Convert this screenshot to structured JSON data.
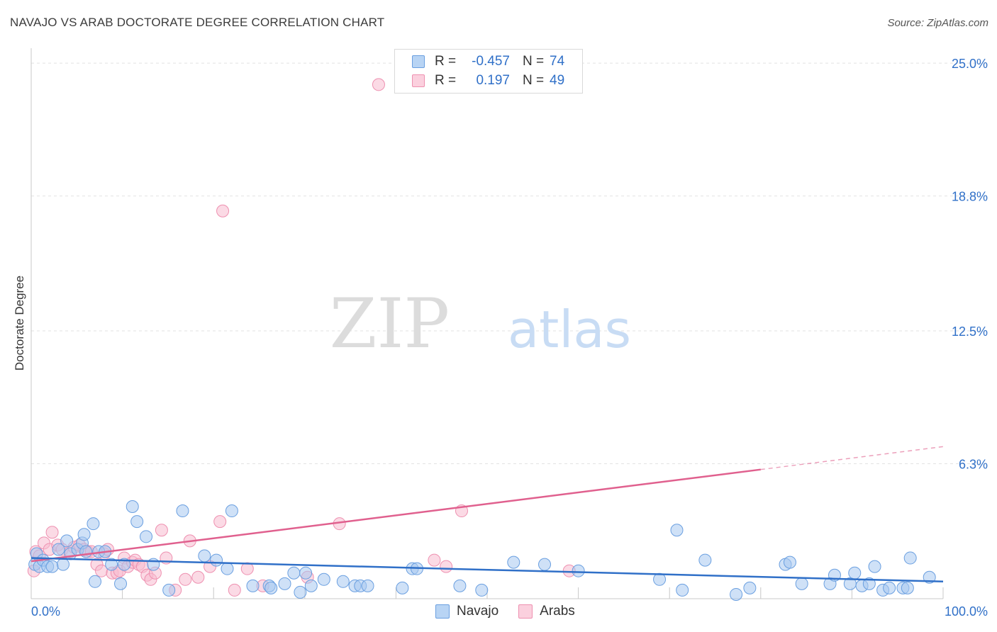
{
  "title": "NAVAJO VS ARAB DOCTORATE DEGREE CORRELATION CHART",
  "source": "Source: ZipAtlas.com",
  "watermark": {
    "zip": "ZIP",
    "atlas": "atlas"
  },
  "legend": {
    "navajo": {
      "r_label": "R =",
      "r_value": "-0.457",
      "n_label": "N =",
      "n_value": "74"
    },
    "arabs": {
      "r_label": "R =",
      "r_value": "0.197",
      "n_label": "N =",
      "n_value": "49"
    }
  },
  "bottom_legend": {
    "navajo": "Navajo",
    "arabs": "Arabs"
  },
  "colors": {
    "navajo_fill": "#a8c8f0",
    "navajo_stroke": "#6a9fe0",
    "navajo_line": "#3070c8",
    "arabs_fill": "#f8bcd0",
    "arabs_stroke": "#ee90b0",
    "arabs_line": "#e0608e",
    "tick_label": "#3070c8",
    "grid": "#e2e2e2"
  },
  "chart_data": {
    "type": "scatter",
    "title": "NAVAJO VS ARAB DOCTORATE DEGREE CORRELATION CHART",
    "xlabel": "",
    "ylabel": "Doctorate Degree",
    "xlim": [
      0,
      100
    ],
    "ylim": [
      0,
      25.5
    ],
    "x_tick_labels": [
      "0.0%",
      "100.0%"
    ],
    "y_ticks": [
      6.3,
      12.5,
      18.8,
      25.0
    ],
    "y_tick_labels": [
      "6.3%",
      "12.5%",
      "18.8%",
      "25.0%"
    ],
    "series": [
      {
        "name": "Navajo",
        "trend": {
          "x0": 0,
          "y0": 1.9,
          "x1": 100,
          "y1": 0.8,
          "solid_to": 100
        },
        "points": [
          [
            0.4,
            1.6
          ],
          [
            0.6,
            2.1
          ],
          [
            0.9,
            1.5
          ],
          [
            1.3,
            1.8
          ],
          [
            1.8,
            1.5
          ],
          [
            2.3,
            1.5
          ],
          [
            3.0,
            2.3
          ],
          [
            3.5,
            1.6
          ],
          [
            3.9,
            2.7
          ],
          [
            4.3,
            2.1
          ],
          [
            5.1,
            2.3
          ],
          [
            5.6,
            2.6
          ],
          [
            6.0,
            2.2
          ],
          [
            7.4,
            2.2
          ],
          [
            5.8,
            3.0
          ],
          [
            6.8,
            3.5
          ],
          [
            7.0,
            0.8
          ],
          [
            8.1,
            2.2
          ],
          [
            8.8,
            1.6
          ],
          [
            9.8,
            0.7
          ],
          [
            10.2,
            1.6
          ],
          [
            11.1,
            4.3
          ],
          [
            11.6,
            3.6
          ],
          [
            12.6,
            2.9
          ],
          [
            13.4,
            1.6
          ],
          [
            15.1,
            0.4
          ],
          [
            16.6,
            4.1
          ],
          [
            19.0,
            2.0
          ],
          [
            20.3,
            1.8
          ],
          [
            21.5,
            1.4
          ],
          [
            22.0,
            4.1
          ],
          [
            24.3,
            0.6
          ],
          [
            26.1,
            0.6
          ],
          [
            26.3,
            0.5
          ],
          [
            27.8,
            0.7
          ],
          [
            28.8,
            1.2
          ],
          [
            29.5,
            0.3
          ],
          [
            30.1,
            1.2
          ],
          [
            30.7,
            0.6
          ],
          [
            32.1,
            0.9
          ],
          [
            34.2,
            0.8
          ],
          [
            35.5,
            0.6
          ],
          [
            36.1,
            0.6
          ],
          [
            36.9,
            0.6
          ],
          [
            40.7,
            0.5
          ],
          [
            41.8,
            1.4
          ],
          [
            42.3,
            1.4
          ],
          [
            47.0,
            0.6
          ],
          [
            49.4,
            0.4
          ],
          [
            52.9,
            1.7
          ],
          [
            56.3,
            1.6
          ],
          [
            60.0,
            1.3
          ],
          [
            68.9,
            0.9
          ],
          [
            70.8,
            3.2
          ],
          [
            71.4,
            0.4
          ],
          [
            73.9,
            1.8
          ],
          [
            77.3,
            0.2
          ],
          [
            78.8,
            0.5
          ],
          [
            82.7,
            1.6
          ],
          [
            83.2,
            1.7
          ],
          [
            84.5,
            0.7
          ],
          [
            87.6,
            0.7
          ],
          [
            88.1,
            1.1
          ],
          [
            89.8,
            0.7
          ],
          [
            90.3,
            1.2
          ],
          [
            91.1,
            0.6
          ],
          [
            91.9,
            0.7
          ],
          [
            92.5,
            1.5
          ],
          [
            93.4,
            0.4
          ],
          [
            94.1,
            0.5
          ],
          [
            95.6,
            0.5
          ],
          [
            96.1,
            0.5
          ],
          [
            96.4,
            1.9
          ],
          [
            98.5,
            1.0
          ]
        ]
      },
      {
        "name": "Arabs",
        "trend": {
          "x0": 0,
          "y0": 1.75,
          "x1": 100,
          "y1": 7.1,
          "solid_to": 80
        },
        "points": [
          [
            0.3,
            1.3
          ],
          [
            0.5,
            2.2
          ],
          [
            0.9,
            2.0
          ],
          [
            1.4,
            2.6
          ],
          [
            2.0,
            2.3
          ],
          [
            2.3,
            3.1
          ],
          [
            2.9,
            2.5
          ],
          [
            3.4,
            2.3
          ],
          [
            4.3,
            2.2
          ],
          [
            4.7,
            2.4
          ],
          [
            5.3,
            2.5
          ],
          [
            5.8,
            2.3
          ],
          [
            6.2,
            2.2
          ],
          [
            6.6,
            2.2
          ],
          [
            7.2,
            1.6
          ],
          [
            7.7,
            1.3
          ],
          [
            8.0,
            2.1
          ],
          [
            8.4,
            2.3
          ],
          [
            8.9,
            1.2
          ],
          [
            9.4,
            1.2
          ],
          [
            9.7,
            1.3
          ],
          [
            10.2,
            1.9
          ],
          [
            10.6,
            1.5
          ],
          [
            11.1,
            1.7
          ],
          [
            11.4,
            1.8
          ],
          [
            11.8,
            1.6
          ],
          [
            12.2,
            1.5
          ],
          [
            12.7,
            1.1
          ],
          [
            13.1,
            0.9
          ],
          [
            13.6,
            1.2
          ],
          [
            14.3,
            3.2
          ],
          [
            14.8,
            1.9
          ],
          [
            15.8,
            0.4
          ],
          [
            16.9,
            0.9
          ],
          [
            17.4,
            2.7
          ],
          [
            18.3,
            1.0
          ],
          [
            19.6,
            1.5
          ],
          [
            20.7,
            3.6
          ],
          [
            21.0,
            18.1
          ],
          [
            22.3,
            0.4
          ],
          [
            23.7,
            1.4
          ],
          [
            25.4,
            0.6
          ],
          [
            30.3,
            1.0
          ],
          [
            33.8,
            3.5
          ],
          [
            38.1,
            24.0
          ],
          [
            44.2,
            1.8
          ],
          [
            45.5,
            1.5
          ],
          [
            47.2,
            4.1
          ],
          [
            59.0,
            1.3
          ]
        ]
      }
    ]
  }
}
